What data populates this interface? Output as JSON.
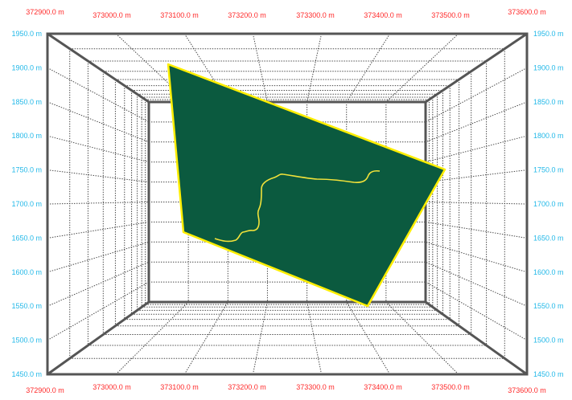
{
  "colors": {
    "x_label": "#ff2a2a",
    "y_label": "#22b8e8",
    "frame": "#555555",
    "grid": "#444444",
    "surface_fill": "#0b5a3f",
    "surface_edge": "#ffee00",
    "trace": "#f2e23a"
  },
  "grid": {
    "x_ticks": [
      "372900.0 m",
      "373000.0 m",
      "373100.0 m",
      "373200.0 m",
      "373300.0 m",
      "373400.0 m",
      "373500.0 m",
      "373600.0 m"
    ],
    "y_ticks": [
      "1950.0 m",
      "1900.0 m",
      "1850.0 m",
      "1800.0 m",
      "1750.0 m",
      "1700.0 m",
      "1650.0 m",
      "1600.0 m",
      "1550.0 m",
      "1500.0 m",
      "1450.0 m"
    ]
  }
}
